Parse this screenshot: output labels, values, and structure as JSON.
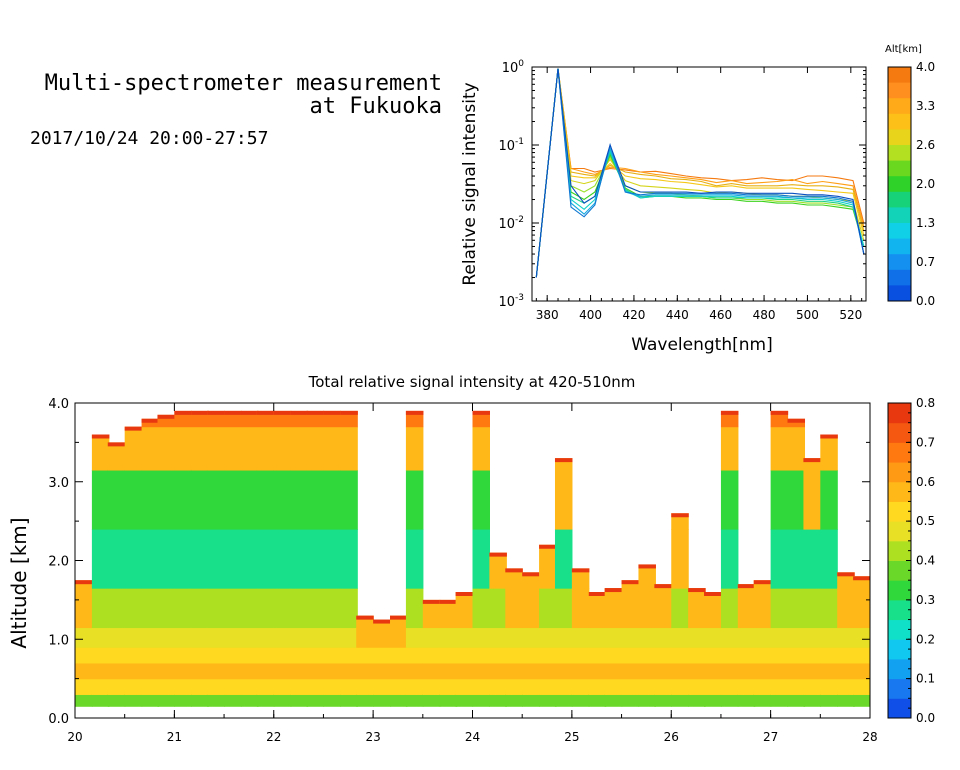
{
  "header": {
    "title": "Multi-spectrometer measurement\nat Fukuoka",
    "time_range": "2017/10/24 20:00-27:57"
  },
  "chart_data": [
    {
      "type": "line",
      "xlabel": "Wavelength[nm]",
      "ylabel": "Relative signal intensity",
      "ylog": true,
      "xlim": [
        373,
        527
      ],
      "ylim": [
        0.001,
        1
      ],
      "xticks": [
        380,
        400,
        420,
        440,
        460,
        480,
        500,
        520
      ],
      "yticks": [
        {
          "base": "10",
          "exp": "-3"
        },
        {
          "base": "10",
          "exp": "-2"
        },
        {
          "base": "10",
          "exp": "-1"
        },
        {
          "base": "10",
          "exp": "0"
        }
      ],
      "x": [
        375,
        385,
        391,
        397,
        402,
        409,
        416,
        423,
        430,
        437,
        444,
        451,
        458,
        465,
        472,
        479,
        486,
        493,
        500,
        507,
        514,
        521,
        526
      ],
      "series": [
        {
          "alt": 4.0,
          "color": "#f57a10",
          "values": [
            0.002,
            0.95,
            0.05,
            0.05,
            0.045,
            0.05,
            0.048,
            0.045,
            0.046,
            0.043,
            0.04,
            0.038,
            0.037,
            0.035,
            0.036,
            0.038,
            0.036,
            0.035,
            0.04,
            0.04,
            0.038,
            0.035,
            0.01
          ]
        },
        {
          "alt": 3.6,
          "color": "#ff9f15",
          "values": [
            0.002,
            0.95,
            0.05,
            0.045,
            0.042,
            0.052,
            0.05,
            0.045,
            0.042,
            0.04,
            0.038,
            0.036,
            0.033,
            0.035,
            0.032,
            0.033,
            0.034,
            0.036,
            0.032,
            0.034,
            0.032,
            0.03,
            0.009
          ]
        },
        {
          "alt": 3.3,
          "color": "#e6b015",
          "values": [
            0.002,
            0.95,
            0.045,
            0.042,
            0.04,
            0.055,
            0.045,
            0.042,
            0.04,
            0.037,
            0.036,
            0.034,
            0.03,
            0.032,
            0.03,
            0.03,
            0.03,
            0.031,
            0.03,
            0.03,
            0.029,
            0.027,
            0.008
          ]
        },
        {
          "alt": 3.0,
          "color": "#f5c818",
          "values": [
            0.002,
            0.95,
            0.04,
            0.038,
            0.038,
            0.058,
            0.04,
            0.037,
            0.036,
            0.034,
            0.033,
            0.031,
            0.029,
            0.03,
            0.028,
            0.028,
            0.028,
            0.028,
            0.027,
            0.026,
            0.025,
            0.024,
            0.007
          ]
        },
        {
          "alt": 2.6,
          "color": "#d4d41a",
          "values": [
            0.002,
            0.95,
            0.035,
            0.032,
            0.035,
            0.065,
            0.035,
            0.03,
            0.029,
            0.028,
            0.027,
            0.026,
            0.024,
            0.025,
            0.024,
            0.023,
            0.023,
            0.022,
            0.022,
            0.021,
            0.02,
            0.019,
            0.006
          ]
        },
        {
          "alt": 2.3,
          "color": "#9ce02a",
          "values": [
            0.002,
            0.95,
            0.03,
            0.025,
            0.03,
            0.07,
            0.03,
            0.025,
            0.024,
            0.024,
            0.023,
            0.022,
            0.021,
            0.021,
            0.02,
            0.02,
            0.019,
            0.019,
            0.018,
            0.018,
            0.017,
            0.016,
            0.005
          ]
        },
        {
          "alt": 2.0,
          "color": "#3cd21e",
          "values": [
            0.002,
            0.95,
            0.025,
            0.02,
            0.025,
            0.075,
            0.028,
            0.022,
            0.022,
            0.022,
            0.021,
            0.021,
            0.02,
            0.02,
            0.019,
            0.019,
            0.018,
            0.018,
            0.017,
            0.017,
            0.016,
            0.015,
            0.005
          ]
        },
        {
          "alt": 1.6,
          "color": "#20d285",
          "values": [
            0.002,
            0.95,
            0.022,
            0.018,
            0.022,
            0.08,
            0.027,
            0.021,
            0.022,
            0.022,
            0.022,
            0.022,
            0.021,
            0.021,
            0.021,
            0.021,
            0.02,
            0.02,
            0.019,
            0.019,
            0.018,
            0.016,
            0.005
          ]
        },
        {
          "alt": 1.3,
          "color": "#12d0c8",
          "values": [
            0.002,
            0.95,
            0.02,
            0.015,
            0.02,
            0.085,
            0.026,
            0.021,
            0.022,
            0.022,
            0.022,
            0.022,
            0.022,
            0.022,
            0.021,
            0.021,
            0.021,
            0.021,
            0.02,
            0.02,
            0.019,
            0.017,
            0.005
          ]
        },
        {
          "alt": 1.0,
          "color": "#15a8e0",
          "values": [
            0.002,
            0.95,
            0.018,
            0.013,
            0.018,
            0.09,
            0.025,
            0.022,
            0.023,
            0.023,
            0.023,
            0.023,
            0.023,
            0.023,
            0.022,
            0.022,
            0.022,
            0.021,
            0.021,
            0.021,
            0.02,
            0.018,
            0.004
          ]
        },
        {
          "alt": 0.7,
          "color": "#1078d2",
          "values": [
            0.002,
            0.95,
            0.016,
            0.012,
            0.017,
            0.1,
            0.025,
            0.023,
            0.024,
            0.024,
            0.024,
            0.024,
            0.024,
            0.024,
            0.023,
            0.023,
            0.023,
            0.022,
            0.022,
            0.022,
            0.021,
            0.019,
            0.004
          ]
        },
        {
          "alt": 0.3,
          "color": "#0a50c0",
          "values": [
            0.002,
            0.95,
            0.03,
            0.018,
            0.022,
            0.1,
            0.03,
            0.025,
            0.025,
            0.025,
            0.025,
            0.024,
            0.025,
            0.025,
            0.024,
            0.024,
            0.024,
            0.024,
            0.023,
            0.023,
            0.022,
            0.02,
            0.004
          ]
        }
      ],
      "legend": {
        "title": "Alt[km]",
        "ticks": [
          "4.0",
          "3.3",
          "2.6",
          "2.0",
          "1.3",
          "0.7",
          "0.0"
        ],
        "colors": [
          "#f57a10",
          "#ff9020",
          "#ffaa18",
          "#fcc018",
          "#e8d41a",
          "#b4e022",
          "#6ad81e",
          "#2ed228",
          "#18d27a",
          "#12d2b8",
          "#10d0e8",
          "#12b4f0",
          "#1490f0",
          "#1070e8",
          "#0a50e0"
        ]
      }
    },
    {
      "type": "heatmap",
      "title": "Total relative signal intensity at 420-510nm",
      "xlabel": "",
      "ylabel": "Altitude [km]",
      "xlim": [
        20,
        28
      ],
      "ylim": [
        0,
        4
      ],
      "xticks": [
        "20",
        "21",
        "22",
        "23",
        "24",
        "25",
        "26",
        "27",
        "28"
      ],
      "yticks": [
        "0.0",
        "1.0",
        "2.0",
        "3.0",
        "4.0"
      ],
      "colorbar": {
        "range": [
          0,
          0.8
        ],
        "ticks": [
          "0.0",
          "0.1",
          "0.2",
          "0.3",
          "0.4",
          "0.5",
          "0.6",
          "0.7",
          "0.8"
        ],
        "colors": [
          "#1050e8",
          "#1878f0",
          "#12a0f0",
          "#10c8f0",
          "#10e0c8",
          "#18e08a",
          "#30d83c",
          "#6ad828",
          "#aee022",
          "#e8e024",
          "#ffd820",
          "#ffb818",
          "#ff9a14",
          "#ff7810",
          "#f55810",
          "#e83810"
        ]
      },
      "time_hours": [
        20.0,
        20.17,
        20.33,
        20.5,
        20.67,
        20.83,
        21.0,
        21.17,
        21.33,
        21.5,
        21.67,
        21.83,
        22.0,
        22.17,
        22.33,
        22.5,
        22.67,
        22.83,
        23.0,
        23.17,
        23.33,
        23.5,
        23.67,
        23.83,
        24.0,
        24.17,
        24.33,
        24.5,
        24.67,
        24.83,
        25.0,
        25.17,
        25.33,
        25.5,
        25.67,
        25.83,
        26.0,
        26.17,
        26.33,
        26.5,
        26.67,
        26.83,
        27.0,
        27.17,
        27.33,
        27.5,
        27.67,
        27.83
      ],
      "top_km": [
        1.75,
        3.6,
        3.5,
        3.7,
        3.8,
        3.85,
        3.9,
        3.9,
        3.9,
        3.9,
        3.9,
        3.9,
        3.9,
        3.9,
        3.9,
        3.9,
        3.9,
        1.3,
        1.25,
        1.3,
        3.9,
        1.5,
        1.5,
        1.6,
        3.9,
        2.1,
        1.9,
        1.85,
        2.2,
        3.3,
        1.9,
        1.6,
        1.65,
        1.75,
        1.95,
        1.7,
        2.6,
        1.65,
        1.6,
        3.9,
        1.7,
        1.75,
        3.9,
        3.8,
        3.3,
        3.6,
        1.85,
        1.8
      ],
      "band_values": [
        {
          "alt": 0.2,
          "value": 0.38
        },
        {
          "alt": 0.4,
          "value": 0.5
        },
        {
          "alt": 0.6,
          "value": 0.55
        },
        {
          "alt": 0.8,
          "value": 0.5
        },
        {
          "alt": 1.0,
          "value": 0.45
        },
        {
          "alt": 1.3,
          "value": 0.4
        },
        {
          "alt": 2.0,
          "value": 0.3
        },
        {
          "alt": 2.8,
          "value": 0.35
        },
        {
          "alt": 3.5,
          "value": 0.55
        },
        {
          "alt": 3.9,
          "value": 0.7
        }
      ]
    }
  ]
}
